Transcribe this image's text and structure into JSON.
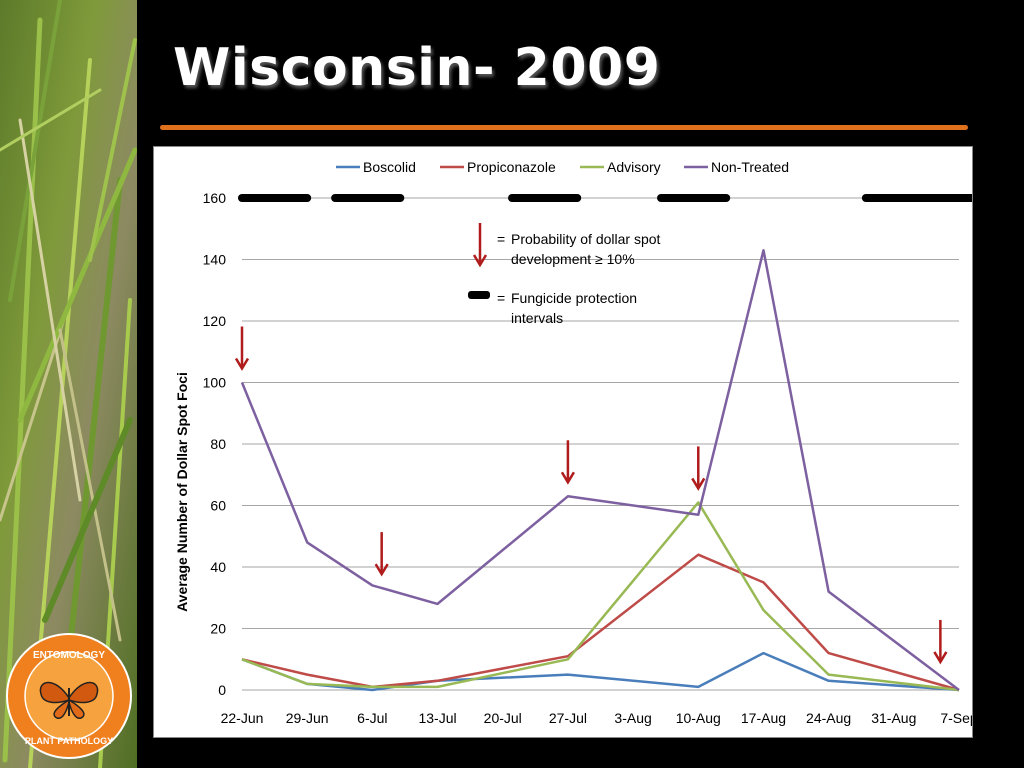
{
  "slide": {
    "title": "Wisconsin- 2009",
    "accent_color": "#e0711c",
    "logo": {
      "top_text": "ENTOMOLOGY",
      "bottom_text": "PLANT PATHOLOGY",
      "primary_color": "#f07f1e",
      "icon": "monarch-butterfly-icon"
    }
  },
  "chart_data": {
    "type": "line",
    "title": "",
    "xlabel": "",
    "ylabel": "Average Number of Dollar Spot Foci",
    "ylim": [
      0,
      160
    ],
    "yticks": [
      0,
      20,
      40,
      60,
      80,
      100,
      120,
      140,
      160
    ],
    "grid": true,
    "legend_position": "top",
    "x_tick_labels": [
      "22-Jun",
      "29-Jun",
      "6-Jul",
      "13-Jul",
      "20-Jul",
      "27-Jul",
      "3-Aug",
      "10-Aug",
      "17-Aug",
      "24-Aug",
      "31-Aug",
      "7-Sep"
    ],
    "x_range": [
      "2009-06-22",
      "2009-09-07"
    ],
    "series": [
      {
        "name": "Boscolid",
        "color": "#4a7ebb",
        "x": [
          "2009-06-22",
          "2009-06-29",
          "2009-07-06",
          "2009-07-13",
          "2009-07-27",
          "2009-08-10",
          "2009-08-17",
          "2009-08-24",
          "2009-09-07"
        ],
        "y": [
          10,
          2,
          0,
          3,
          5,
          1,
          12,
          3,
          0
        ]
      },
      {
        "name": "Propiconazole",
        "color": "#be4b48",
        "x": [
          "2009-06-22",
          "2009-06-29",
          "2009-07-06",
          "2009-07-13",
          "2009-07-27",
          "2009-08-10",
          "2009-08-17",
          "2009-08-24",
          "2009-09-07"
        ],
        "y": [
          10,
          5,
          1,
          3,
          11,
          44,
          35,
          12,
          0
        ]
      },
      {
        "name": "Advisory",
        "color": "#98b954",
        "x": [
          "2009-06-22",
          "2009-06-29",
          "2009-07-06",
          "2009-07-13",
          "2009-07-27",
          "2009-08-10",
          "2009-08-17",
          "2009-08-24",
          "2009-09-07"
        ],
        "y": [
          10,
          2,
          1,
          1,
          10,
          61,
          26,
          5,
          0
        ]
      },
      {
        "name": "Non-Treated",
        "color": "#7d60a0",
        "x": [
          "2009-06-22",
          "2009-06-29",
          "2009-07-06",
          "2009-07-13",
          "2009-07-27",
          "2009-08-10",
          "2009-08-17",
          "2009-08-24",
          "2009-09-07"
        ],
        "y": [
          100,
          48,
          34,
          28,
          63,
          57,
          143,
          32,
          0
        ]
      }
    ],
    "probability_arrows": {
      "color": "#b01c1c",
      "dates": [
        "2009-06-22",
        "2009-07-07",
        "2009-07-27",
        "2009-08-10",
        "2009-09-05"
      ]
    },
    "protection_intervals": [
      {
        "start": "2009-06-22",
        "end": "2009-06-29"
      },
      {
        "start": "2009-07-02",
        "end": "2009-07-09"
      },
      {
        "start": "2009-07-21",
        "end": "2009-07-28"
      },
      {
        "start": "2009-08-06",
        "end": "2009-08-13"
      },
      {
        "start": "2009-08-28",
        "end": "2009-09-10"
      }
    ],
    "annotations": {
      "arrow_note_prefix": "=",
      "arrow_note_lines": [
        "Probability of dollar spot",
        "development ≥ 10%"
      ],
      "interval_note_prefix": "=",
      "interval_note_lines": [
        "Fungicide protection",
        "intervals"
      ]
    }
  }
}
